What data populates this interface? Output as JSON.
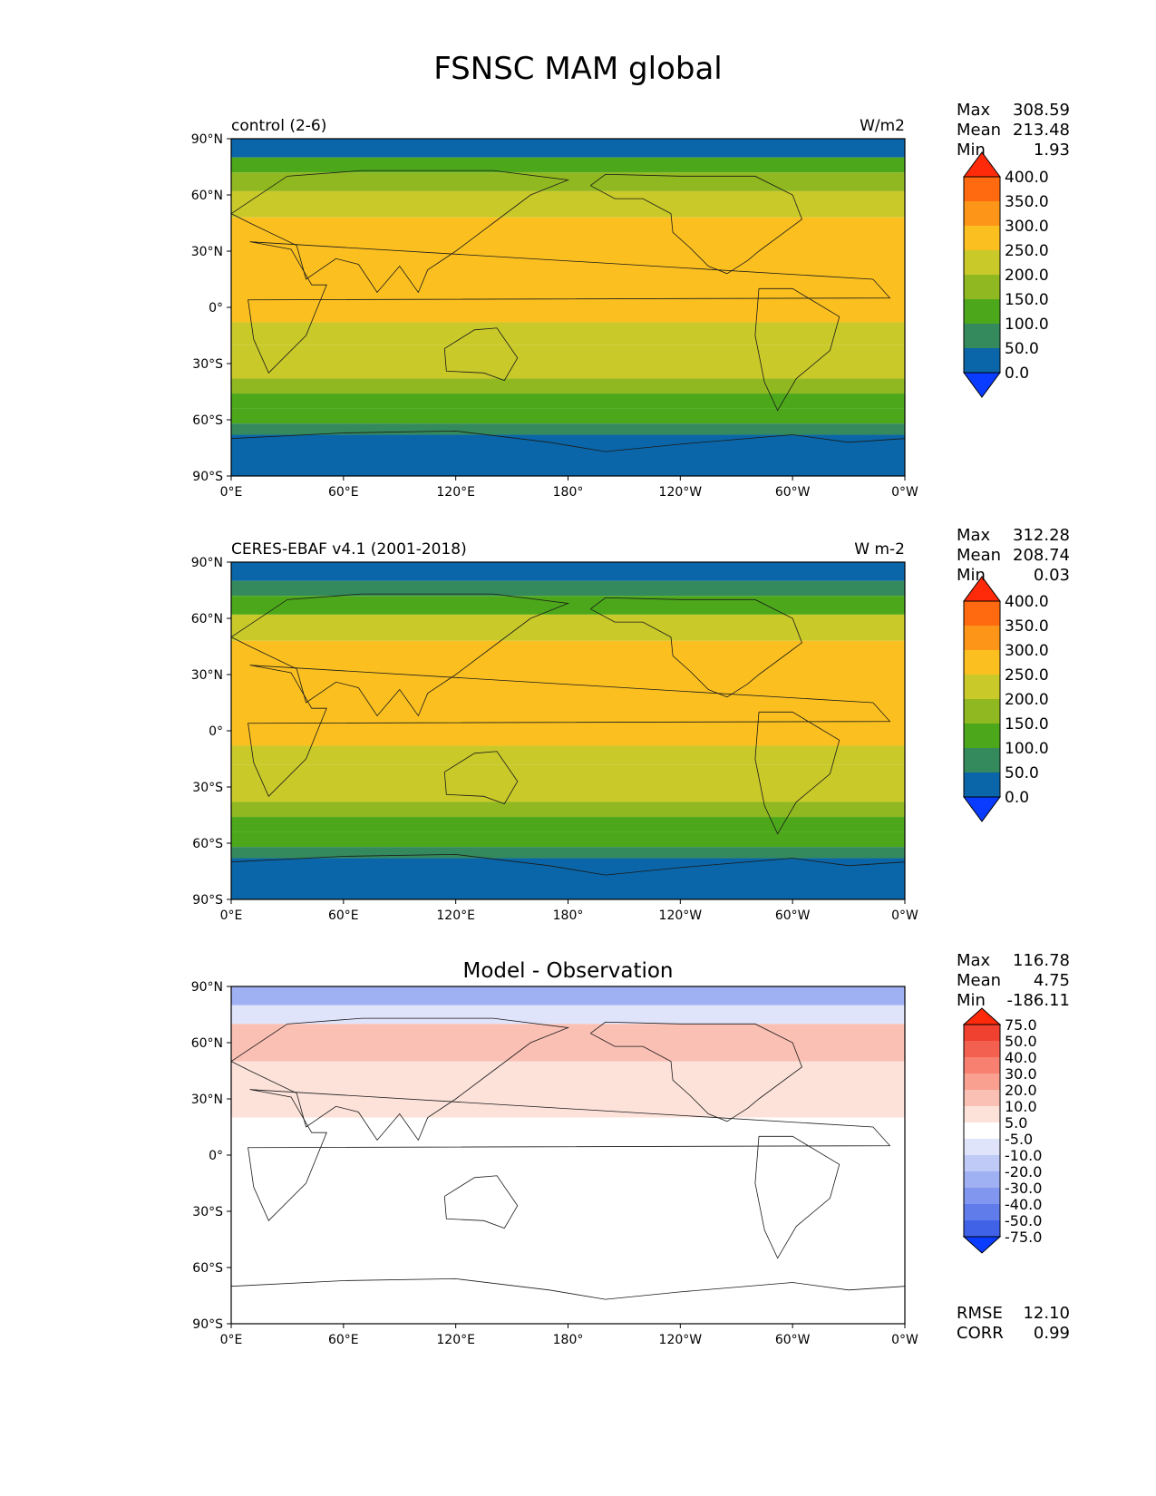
{
  "figure": {
    "title": "FSNSC MAM global"
  },
  "chart_data": [
    {
      "type": "heatmap",
      "title": "control (2-6)",
      "units": "W/m2",
      "stats": {
        "labels": [
          "Max",
          "Mean",
          "Min"
        ],
        "values": [
          "308.59",
          "213.48",
          "1.93"
        ]
      },
      "xticks": [
        "0°E",
        "60°E",
        "120°E",
        "180°",
        "120°W",
        "60°W",
        "0°W"
      ],
      "yticks": [
        "90°N",
        "60°N",
        "30°N",
        "0°",
        "30°S",
        "60°S",
        "90°S"
      ],
      "colorbar": {
        "labels": [
          "400.0",
          "350.0",
          "300.0",
          "250.0",
          "200.0",
          "150.0",
          "100.0",
          "50.0",
          "0.0"
        ],
        "colors": [
          "#ff2a0a",
          "#ff6a10",
          "#fd9618",
          "#fbc020",
          "#c9c92a",
          "#90b820",
          "#4ca81a",
          "#348a5c",
          "#0a66a8",
          "#0a3cff"
        ]
      },
      "zonal_bands": [
        {
          "lat": [
            90,
            80
          ],
          "v": 40
        },
        {
          "lat": [
            80,
            72
          ],
          "v": 110
        },
        {
          "lat": [
            72,
            62
          ],
          "v": 160
        },
        {
          "lat": [
            62,
            48
          ],
          "v": 210
        },
        {
          "lat": [
            48,
            -8
          ],
          "v": 265
        },
        {
          "lat": [
            -8,
            -20
          ],
          "v": 225
        },
        {
          "lat": [
            -20,
            -30
          ],
          "v": 215
        },
        {
          "lat": [
            -30,
            -38
          ],
          "v": 205
        },
        {
          "lat": [
            -38,
            -46
          ],
          "v": 170
        },
        {
          "lat": [
            -46,
            -54
          ],
          "v": 130
        },
        {
          "lat": [
            -54,
            -62
          ],
          "v": 110
        },
        {
          "lat": [
            -62,
            -68
          ],
          "v": 90
        },
        {
          "lat": [
            -68,
            -90
          ],
          "v": 40
        }
      ]
    },
    {
      "type": "heatmap",
      "title": "CERES-EBAF v4.1 (2001-2018)",
      "units": "W m-2",
      "stats": {
        "labels": [
          "Max",
          "Mean",
          "Min"
        ],
        "values": [
          "312.28",
          "208.74",
          "0.03"
        ]
      },
      "xticks": [
        "0°E",
        "60°E",
        "120°E",
        "180°",
        "120°W",
        "60°W",
        "0°W"
      ],
      "yticks": [
        "90°N",
        "60°N",
        "30°N",
        "0°",
        "30°S",
        "60°S",
        "90°S"
      ],
      "colorbar": {
        "labels": [
          "400.0",
          "350.0",
          "300.0",
          "250.0",
          "200.0",
          "150.0",
          "100.0",
          "50.0",
          "0.0"
        ],
        "colors": [
          "#ff2a0a",
          "#ff6a10",
          "#fd9618",
          "#fbc020",
          "#c9c92a",
          "#90b820",
          "#4ca81a",
          "#348a5c",
          "#0a66a8",
          "#0a3cff"
        ]
      },
      "zonal_bands": [
        {
          "lat": [
            90,
            80
          ],
          "v": 40
        },
        {
          "lat": [
            80,
            72
          ],
          "v": 90
        },
        {
          "lat": [
            72,
            62
          ],
          "v": 140
        },
        {
          "lat": [
            62,
            48
          ],
          "v": 200
        },
        {
          "lat": [
            48,
            -8
          ],
          "v": 262
        },
        {
          "lat": [
            -8,
            -18
          ],
          "v": 230
        },
        {
          "lat": [
            -18,
            -30
          ],
          "v": 215
        },
        {
          "lat": [
            -30,
            -38
          ],
          "v": 205
        },
        {
          "lat": [
            -38,
            -46
          ],
          "v": 175
        },
        {
          "lat": [
            -46,
            -54
          ],
          "v": 130
        },
        {
          "lat": [
            -54,
            -62
          ],
          "v": 110
        },
        {
          "lat": [
            -62,
            -68
          ],
          "v": 80
        },
        {
          "lat": [
            -68,
            -90
          ],
          "v": 40
        }
      ]
    },
    {
      "type": "heatmap",
      "title": "Model - Observation",
      "stats": {
        "labels": [
          "Max",
          "Mean",
          "Min"
        ],
        "values": [
          "116.78",
          "4.75",
          "-186.11"
        ]
      },
      "xticks": [
        "0°E",
        "60°E",
        "120°E",
        "180°",
        "120°W",
        "60°W",
        "0°W"
      ],
      "yticks": [
        "90°N",
        "60°N",
        "30°N",
        "0°",
        "30°S",
        "60°S",
        "90°S"
      ],
      "colorbar": {
        "labels": [
          "75.0",
          "50.0",
          "40.0",
          "30.0",
          "20.0",
          "10.0",
          "5.0",
          "-5.0",
          "-10.0",
          "-20.0",
          "-30.0",
          "-40.0",
          "-50.0",
          "-75.0"
        ],
        "colors": [
          "#ff2a0a",
          "#ef4030",
          "#f36050",
          "#f78070",
          "#f9a090",
          "#fbc0b4",
          "#fde2da",
          "#ffffff",
          "#dfe4fb",
          "#bfcaf7",
          "#9fb0f3",
          "#8096ef",
          "#607ceb",
          "#4062e7",
          "#0a3cff"
        ]
      },
      "zonal_bands": [
        {
          "lat": [
            90,
            80
          ],
          "v": -30
        },
        {
          "lat": [
            80,
            70
          ],
          "v": -10
        },
        {
          "lat": [
            70,
            50
          ],
          "v": 15
        },
        {
          "lat": [
            50,
            40
          ],
          "v": 8
        },
        {
          "lat": [
            40,
            20
          ],
          "v": 6
        },
        {
          "lat": [
            20,
            -8
          ],
          "v": 2
        },
        {
          "lat": [
            -8,
            -60
          ],
          "v": 0
        },
        {
          "lat": [
            -60,
            -70
          ],
          "v": 3
        },
        {
          "lat": [
            -70,
            -90
          ],
          "v": 0
        }
      ],
      "metrics": {
        "labels": [
          "RMSE",
          "CORR"
        ],
        "values": [
          "12.10",
          "0.99"
        ]
      }
    }
  ]
}
